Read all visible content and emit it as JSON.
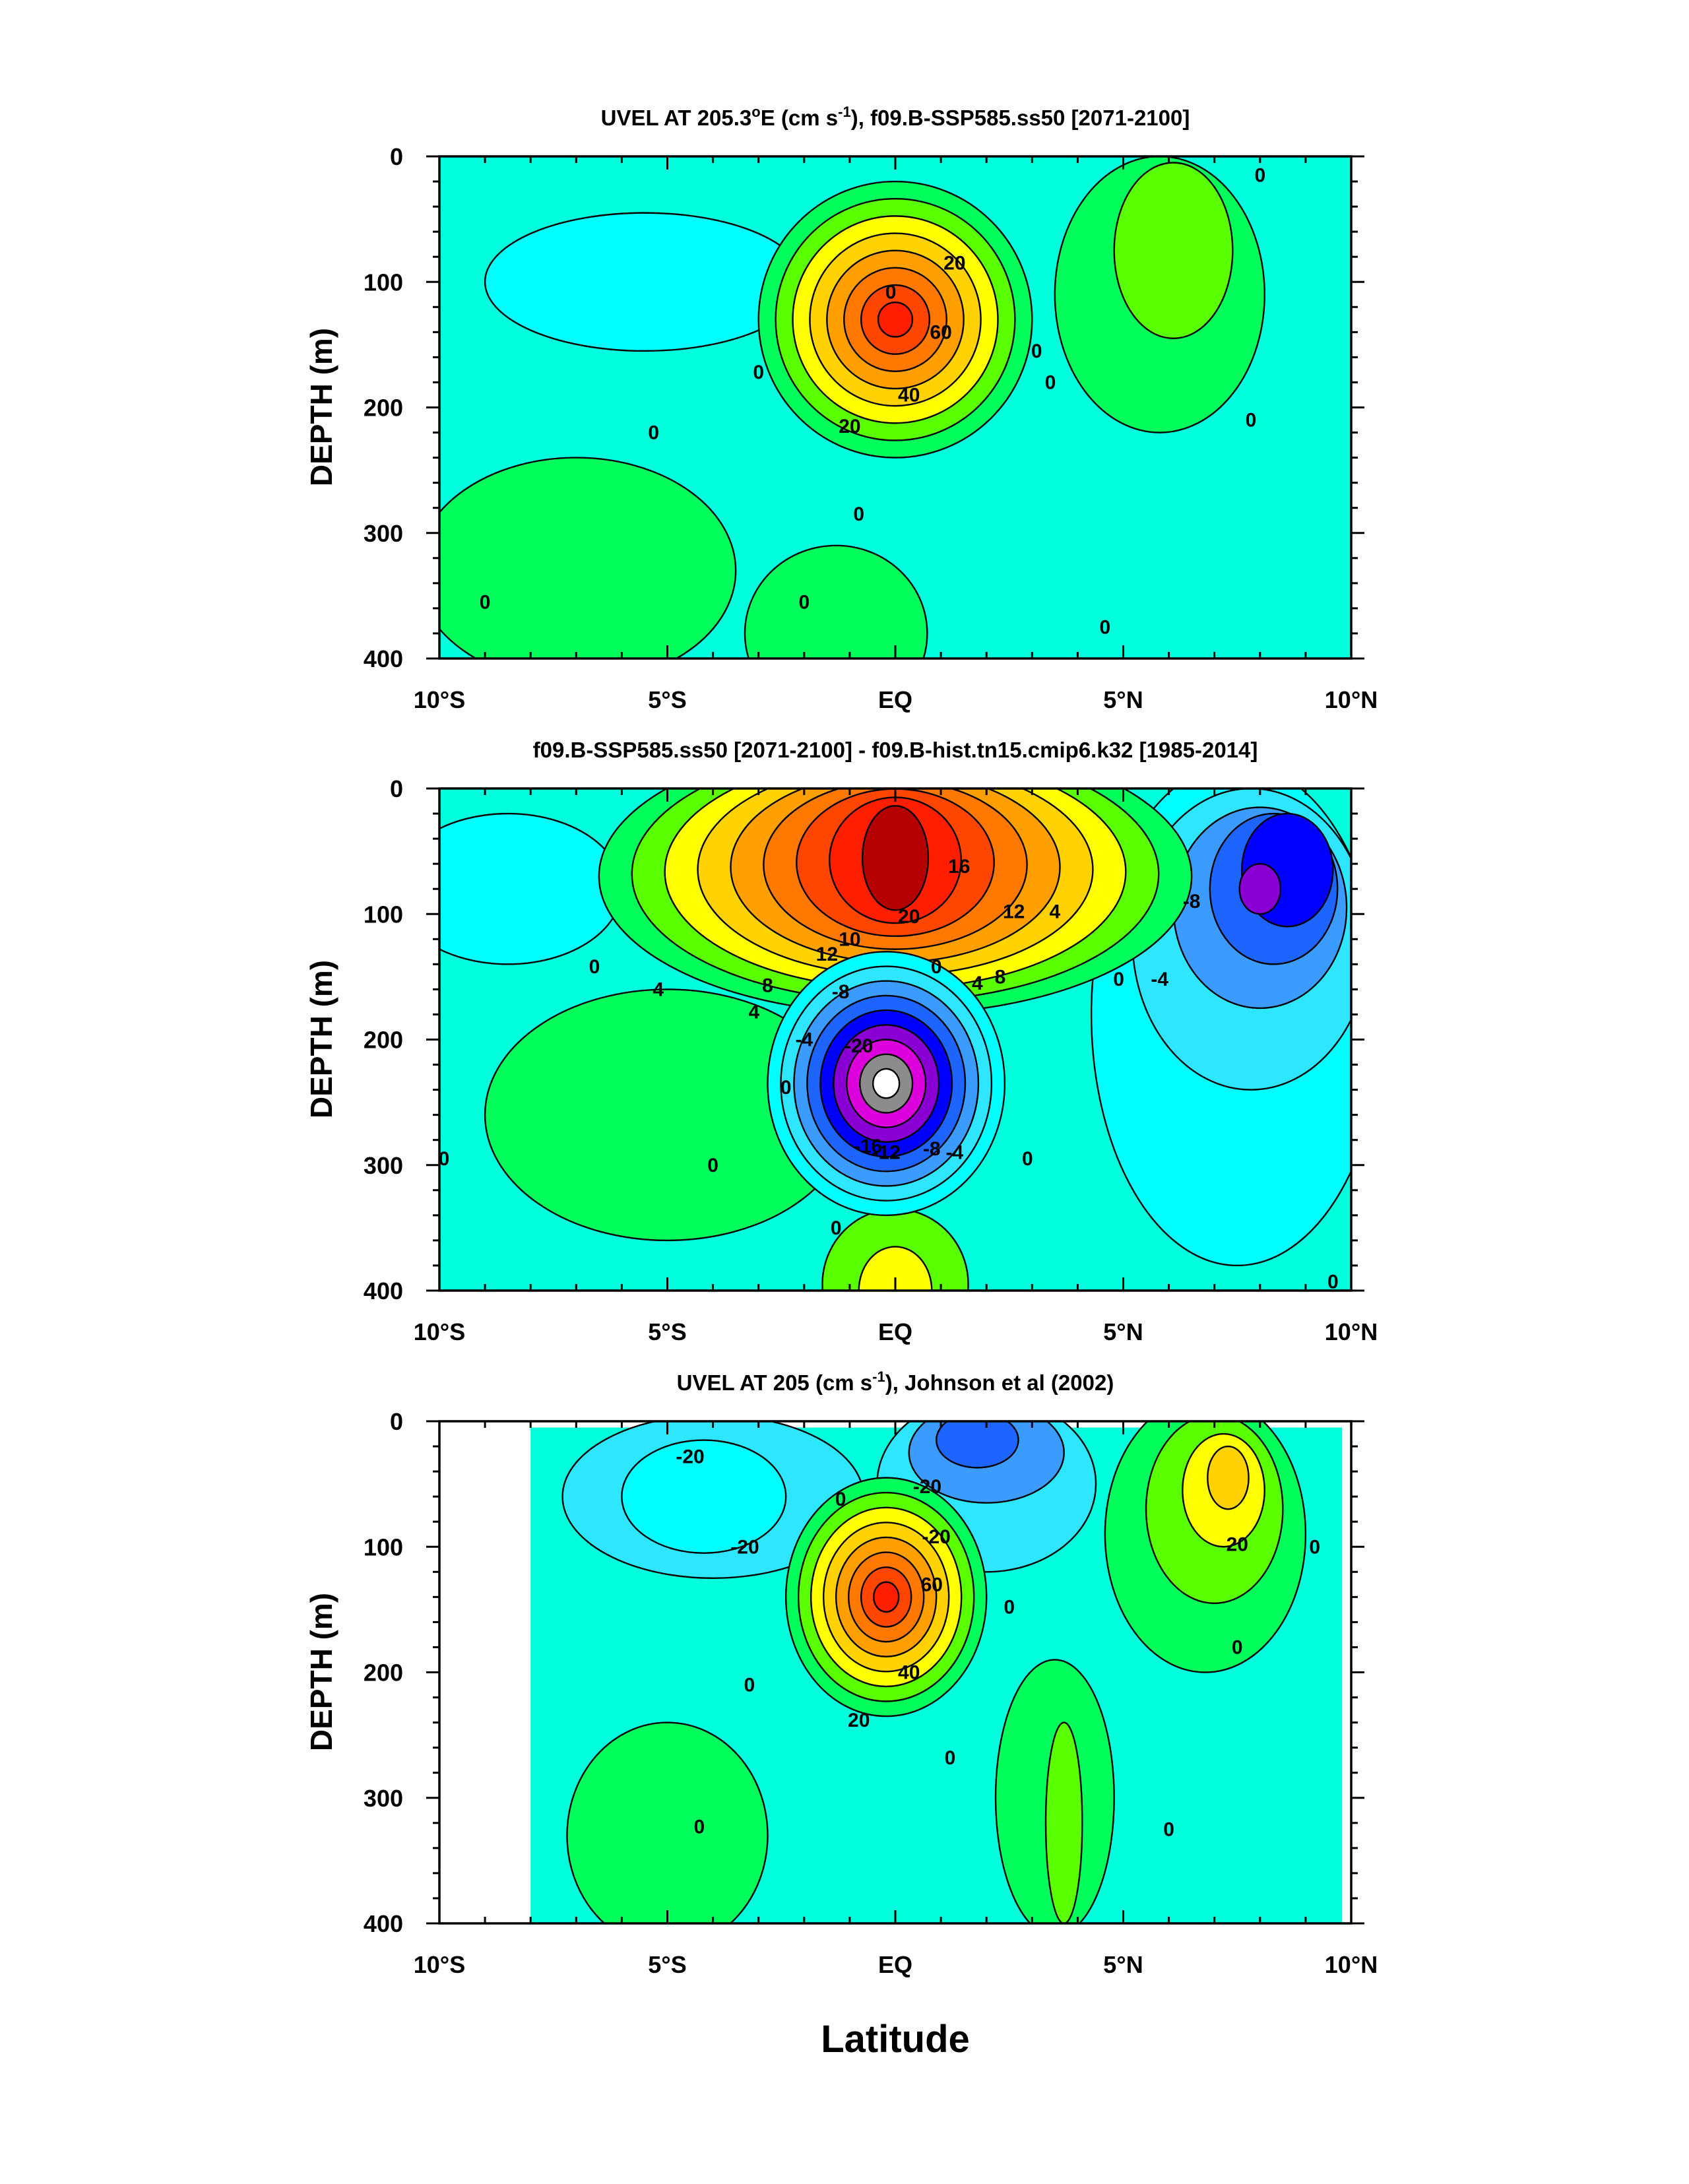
{
  "figure": {
    "shared_xlabel": "Latitude",
    "colors": {
      "white": "#ffffff",
      "gray": "#8c8c8c",
      "magenta": "#dc00dc",
      "purple": "#8a00d4",
      "blue": "#0000ff",
      "mid_blue": "#1e64ff",
      "light_blue": "#3c9bff",
      "sky": "#2ee6ff",
      "cyan": "#00ffff",
      "aqua": "#00ffdc",
      "aquamarine": "#00f0a0",
      "green": "#00ff5a",
      "lime": "#5aff00",
      "yellow": "#ffff00",
      "gold": "#ffd200",
      "orange": "#ffa000",
      "dark_orange": "#ff7800",
      "red_orange": "#ff4600",
      "red": "#ff1e00",
      "dark_red": "#b40000"
    }
  },
  "chart_data": [
    {
      "type": "contour",
      "title_parts": {
        "pre": "UVEL AT 205.3",
        "deg": "o",
        "mid": "E (cm s",
        "exp": "-1",
        "post": "), f09.B-SSP585.ss50 [2071-2100]"
      },
      "xlabel": "",
      "ylabel": "DEPTH (m)",
      "x_ticks": [
        "10°S",
        "5°S",
        "EQ",
        "5°N",
        "10°N"
      ],
      "x_tick_values": [
        -10,
        -5,
        0,
        5,
        10
      ],
      "xlim": [
        -10,
        10
      ],
      "y_ticks": [
        "0",
        "100",
        "200",
        "300",
        "400"
      ],
      "y_tick_values": [
        0,
        100,
        200,
        300,
        400
      ],
      "ylim": [
        0,
        400
      ],
      "y_reversed": true,
      "background": "#00ffdc",
      "features": [
        {
          "kind": "blob",
          "name": "nw-westward-patch",
          "lat": -5.5,
          "depth": 100,
          "rlat": 3.5,
          "rdep": 55,
          "fill": "#00ffff"
        },
        {
          "kind": "blob",
          "name": "sw-eastward-deep",
          "lat": -7.0,
          "depth": 330,
          "rlat": 3.5,
          "rdep": 90,
          "fill": "#00ff5a"
        },
        {
          "kind": "blob",
          "name": "south-deep-eastward",
          "lat": -1.3,
          "depth": 380,
          "rlat": 2.0,
          "rdep": 70,
          "fill": "#00ff5a"
        },
        {
          "kind": "blob",
          "name": "north-surface-eastward",
          "lat": 5.8,
          "depth": 110,
          "rlat": 2.3,
          "rdep": 110,
          "fill": "#00ff5a"
        },
        {
          "kind": "blob",
          "name": "north-surface-eastward-core",
          "lat": 6.1,
          "depth": 75,
          "rlat": 1.3,
          "rdep": 70,
          "fill": "#5aff00"
        },
        {
          "kind": "jet",
          "name": "equatorial-undercurrent",
          "lat": 0.0,
          "depth": 130,
          "rlat": 3.0,
          "rdep": 110,
          "fills": [
            "#00ff5a",
            "#5aff00",
            "#ffff00",
            "#ffd200",
            "#ffa000",
            "#ff7800",
            "#ff4600",
            "#ff1e00"
          ]
        }
      ],
      "contour_labels": [
        {
          "text": "20",
          "lat": 1.3,
          "depth": 85
        },
        {
          "text": "0",
          "lat": -0.1,
          "depth": 108
        },
        {
          "text": "60",
          "lat": 1.0,
          "depth": 140
        },
        {
          "text": "40",
          "lat": 0.3,
          "depth": 190
        },
        {
          "text": "20",
          "lat": -1.0,
          "depth": 215
        },
        {
          "text": "0",
          "lat": -3.0,
          "depth": 172
        },
        {
          "text": "0",
          "lat": 3.1,
          "depth": 155
        },
        {
          "text": "0",
          "lat": 3.4,
          "depth": 180
        },
        {
          "text": "0",
          "lat": -5.3,
          "depth": 220
        },
        {
          "text": "0",
          "lat": -0.8,
          "depth": 285
        },
        {
          "text": "0",
          "lat": -9.0,
          "depth": 355
        },
        {
          "text": "0",
          "lat": -2.0,
          "depth": 355
        },
        {
          "text": "0",
          "lat": 4.6,
          "depth": 375
        },
        {
          "text": "0",
          "lat": 8.0,
          "depth": 15
        },
        {
          "text": "0",
          "lat": 7.8,
          "depth": 210
        }
      ]
    },
    {
      "type": "contour",
      "title_parts": {
        "pre": "f09.B-SSP585.ss50 [2071-2100] - f09.B-hist.tn15.cmip6.k32 [1985-2014]",
        "deg": "",
        "mid": "",
        "exp": "",
        "post": ""
      },
      "xlabel": "",
      "ylabel": "DEPTH (m)",
      "x_ticks": [
        "10°S",
        "5°S",
        "EQ",
        "5°N",
        "10°N"
      ],
      "x_tick_values": [
        -10,
        -5,
        0,
        5,
        10
      ],
      "xlim": [
        -10,
        10
      ],
      "y_ticks": [
        "0",
        "100",
        "200",
        "300",
        "400"
      ],
      "y_tick_values": [
        0,
        100,
        200,
        300,
        400
      ],
      "ylim": [
        0,
        400
      ],
      "y_reversed": true,
      "background": "#00ffdc",
      "features": [
        {
          "kind": "blob",
          "name": "west-surface-negative",
          "lat": -8.5,
          "depth": 80,
          "rlat": 2.5,
          "rdep": 60,
          "fill": "#00ffff"
        },
        {
          "kind": "blob",
          "name": "sw-positive",
          "lat": -5.0,
          "depth": 260,
          "rlat": 4.0,
          "rdep": 100,
          "fill": "#00ff5a"
        },
        {
          "kind": "blob",
          "name": "east-negative",
          "lat": 7.5,
          "depth": 180,
          "rlat": 3.2,
          "rdep": 200,
          "fill": "#00ffff"
        },
        {
          "kind": "blob",
          "name": "east-negative-2",
          "lat": 7.8,
          "depth": 120,
          "rlat": 2.6,
          "rdep": 120,
          "fill": "#2ee6ff"
        },
        {
          "kind": "blob",
          "name": "east-negative-3",
          "lat": 8.0,
          "depth": 95,
          "rlat": 1.9,
          "rdep": 80,
          "fill": "#3c9bff"
        },
        {
          "kind": "blob",
          "name": "east-negative-4",
          "lat": 8.3,
          "depth": 80,
          "rlat": 1.4,
          "rdep": 60,
          "fill": "#1e64ff"
        },
        {
          "kind": "blob",
          "name": "east-negative-5",
          "lat": 8.6,
          "depth": 65,
          "rlat": 1.0,
          "rdep": 45,
          "fill": "#0000ff"
        },
        {
          "kind": "blob",
          "name": "east-negative-core",
          "lat": 8.0,
          "depth": 80,
          "rlat": 0.45,
          "rdep": 20,
          "fill": "#8a00d4"
        },
        {
          "kind": "blob",
          "name": "deep-positive",
          "lat": 0.0,
          "depth": 395,
          "rlat": 1.6,
          "rdep": 60,
          "fill": "#5aff00"
        },
        {
          "kind": "blob",
          "name": "deep-positive-core",
          "lat": 0.0,
          "depth": 400,
          "rlat": 0.8,
          "rdep": 35,
          "fill": "#ffff00"
        },
        {
          "kind": "shallow",
          "name": "shallow-positive-anomaly",
          "lat": 0.0,
          "depth": 70,
          "rlat": 6.5,
          "rdep": 110,
          "fills": [
            "#00ff5a",
            "#5aff00",
            "#ffff00",
            "#ffd200",
            "#ffa000",
            "#ff7800",
            "#ff4600",
            "#ff1e00",
            "#b40000"
          ]
        },
        {
          "kind": "jet",
          "name": "deep-negative-anomaly",
          "lat": -0.2,
          "depth": 235,
          "rlat": 2.6,
          "rdep": 105,
          "fills": [
            "#00ffff",
            "#2ee6ff",
            "#3c9bff",
            "#1e64ff",
            "#0000ff",
            "#8a00d4",
            "#dc00dc",
            "#8c8c8c",
            "#ffffff"
          ]
        }
      ],
      "contour_labels": [
        {
          "text": "16",
          "lat": 1.4,
          "depth": 62
        },
        {
          "text": "12",
          "lat": 2.6,
          "depth": 98
        },
        {
          "text": "20",
          "lat": 0.3,
          "depth": 102
        },
        {
          "text": "4",
          "lat": 3.5,
          "depth": 98
        },
        {
          "text": "12",
          "lat": -1.5,
          "depth": 132
        },
        {
          "text": "10",
          "lat": -1.0,
          "depth": 120
        },
        {
          "text": "0",
          "lat": 0.9,
          "depth": 142
        },
        {
          "text": "8",
          "lat": 2.3,
          "depth": 150
        },
        {
          "text": "4",
          "lat": 1.8,
          "depth": 155
        },
        {
          "text": "8",
          "lat": -2.8,
          "depth": 157
        },
        {
          "text": "4",
          "lat": -5.2,
          "depth": 160
        },
        {
          "text": "0",
          "lat": -6.6,
          "depth": 142
        },
        {
          "text": "4",
          "lat": -3.1,
          "depth": 178
        },
        {
          "text": "-8",
          "lat": -1.2,
          "depth": 162
        },
        {
          "text": "-4",
          "lat": -2.0,
          "depth": 200
        },
        {
          "text": "-20",
          "lat": -0.8,
          "depth": 205
        },
        {
          "text": "0",
          "lat": -2.4,
          "depth": 238
        },
        {
          "text": "-16",
          "lat": -0.6,
          "depth": 285
        },
        {
          "text": "-12",
          "lat": -0.2,
          "depth": 290
        },
        {
          "text": "-8",
          "lat": 0.8,
          "depth": 287
        },
        {
          "text": "-4",
          "lat": 1.3,
          "depth": 290
        },
        {
          "text": "-8",
          "lat": 6.5,
          "depth": 90
        },
        {
          "text": "-4",
          "lat": 5.8,
          "depth": 152
        },
        {
          "text": "0",
          "lat": 4.9,
          "depth": 152
        },
        {
          "text": "0",
          "lat": 2.9,
          "depth": 295
        },
        {
          "text": "0",
          "lat": -4.0,
          "depth": 300
        },
        {
          "text": "0",
          "lat": -9.9,
          "depth": 295
        },
        {
          "text": "0",
          "lat": -1.3,
          "depth": 350
        },
        {
          "text": "0",
          "lat": 9.6,
          "depth": 393
        }
      ]
    },
    {
      "type": "contour",
      "title_parts": {
        "pre": "UVEL AT 205 (cm s",
        "deg": "",
        "mid": "",
        "exp": "-1",
        "post": "), Johnson et al (2002)"
      },
      "xlabel": "",
      "ylabel": "DEPTH (m)",
      "x_ticks": [
        "10°S",
        "5°S",
        "EQ",
        "5°N",
        "10°N"
      ],
      "x_tick_values": [
        -10,
        -5,
        0,
        5,
        10
      ],
      "xlim": [
        -10,
        10
      ],
      "y_ticks": [
        "0",
        "100",
        "200",
        "300",
        "400"
      ],
      "y_tick_values": [
        0,
        100,
        200,
        300,
        400
      ],
      "ylim": [
        0,
        400
      ],
      "y_reversed": true,
      "background": "#00ffdc",
      "data_extent": {
        "lat": [
          -8.0,
          9.8
        ],
        "depth": [
          5,
          400
        ]
      },
      "features": [
        {
          "kind": "blob",
          "name": "west-surface-westward",
          "lat": -4.0,
          "depth": 60,
          "rlat": 3.3,
          "rdep": 65,
          "fill": "#2ee6ff"
        },
        {
          "kind": "blob",
          "name": "west-surface-westward-2",
          "lat": -4.2,
          "depth": 60,
          "rlat": 1.8,
          "rdep": 45,
          "fill": "#00ffff"
        },
        {
          "kind": "blob",
          "name": "north-westward-band",
          "lat": 2.0,
          "depth": 50,
          "rlat": 2.4,
          "rdep": 70,
          "fill": "#2ee6ff"
        },
        {
          "kind": "blob",
          "name": "north-westward-band-2",
          "lat": 2.0,
          "depth": 25,
          "rlat": 1.7,
          "rdep": 40,
          "fill": "#3c9bff"
        },
        {
          "kind": "blob",
          "name": "north-westward-core",
          "lat": 1.8,
          "depth": 15,
          "rlat": 0.9,
          "rdep": 22,
          "fill": "#1e64ff"
        },
        {
          "kind": "blob",
          "name": "ncc-surface-eastward",
          "lat": 6.8,
          "depth": 90,
          "rlat": 2.2,
          "rdep": 110,
          "fill": "#00ff5a"
        },
        {
          "kind": "blob",
          "name": "ncc-surface-eastward-2",
          "lat": 7.0,
          "depth": 70,
          "rlat": 1.5,
          "rdep": 75,
          "fill": "#5aff00"
        },
        {
          "kind": "blob",
          "name": "ncc-surface-eastward-3",
          "lat": 7.2,
          "depth": 55,
          "rlat": 0.9,
          "rdep": 45,
          "fill": "#ffff00"
        },
        {
          "kind": "blob",
          "name": "ncc-surface-eastward-core",
          "lat": 7.3,
          "depth": 45,
          "rlat": 0.45,
          "rdep": 25,
          "fill": "#ffd200"
        },
        {
          "kind": "blob",
          "name": "deep-eastward-west",
          "lat": -5.0,
          "depth": 330,
          "rlat": 2.2,
          "rdep": 90,
          "fill": "#00ff5a"
        },
        {
          "kind": "blob",
          "name": "deep-eastward-mid",
          "lat": 3.5,
          "depth": 300,
          "rlat": 1.3,
          "rdep": 110,
          "fill": "#00ff5a"
        },
        {
          "kind": "blob",
          "name": "deep-eastward-mid-core",
          "lat": 3.7,
          "depth": 320,
          "rlat": 0.4,
          "rdep": 80,
          "fill": "#5aff00"
        },
        {
          "kind": "jet",
          "name": "equatorial-undercurrent",
          "lat": -0.2,
          "depth": 140,
          "rlat": 2.2,
          "rdep": 95,
          "fills": [
            "#00ff5a",
            "#5aff00",
            "#ffff00",
            "#ffd200",
            "#ffa000",
            "#ff7800",
            "#ff4600",
            "#ff1e00"
          ]
        }
      ],
      "contour_labels": [
        {
          "text": "-20",
          "lat": -4.5,
          "depth": 28
        },
        {
          "text": "-20",
          "lat": 0.7,
          "depth": 52
        },
        {
          "text": "0",
          "lat": -1.2,
          "depth": 62
        },
        {
          "text": "-20",
          "lat": -3.3,
          "depth": 100
        },
        {
          "text": "-20",
          "lat": 0.9,
          "depth": 92
        },
        {
          "text": "60",
          "lat": 0.8,
          "depth": 130
        },
        {
          "text": "0",
          "lat": 2.5,
          "depth": 148
        },
        {
          "text": "40",
          "lat": 0.3,
          "depth": 200
        },
        {
          "text": "20",
          "lat": -0.8,
          "depth": 238
        },
        {
          "text": "0",
          "lat": -3.2,
          "depth": 210
        },
        {
          "text": "0",
          "lat": 1.2,
          "depth": 268
        },
        {
          "text": "0",
          "lat": -4.3,
          "depth": 323
        },
        {
          "text": "20",
          "lat": 7.5,
          "depth": 98
        },
        {
          "text": "0",
          "lat": 9.2,
          "depth": 100
        },
        {
          "text": "0",
          "lat": 7.5,
          "depth": 180
        },
        {
          "text": "0",
          "lat": 6.0,
          "depth": 325
        }
      ]
    }
  ]
}
